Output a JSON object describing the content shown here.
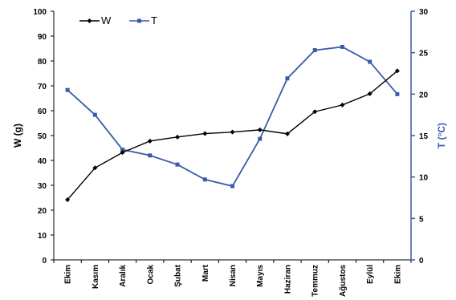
{
  "chart_data": {
    "type": "line",
    "categories": [
      "Ekim",
      "Kasım",
      "Aralık",
      "Ocak",
      "Şubat",
      "Mart",
      "Nisan",
      "Mayıs",
      "Haziran",
      "Temmuz",
      "Ağustos",
      "Eylül",
      "Ekim"
    ],
    "series": [
      {
        "name": "W",
        "axis": "left",
        "color": "#000000",
        "marker": "diamond",
        "values": [
          24.2,
          37.0,
          43.2,
          47.8,
          49.4,
          50.8,
          51.4,
          52.3,
          50.7,
          59.6,
          62.3,
          66.8,
          76.0
        ]
      },
      {
        "name": "T",
        "axis": "right",
        "color": "#3a5ba9",
        "marker": "square",
        "values": [
          20.5,
          17.5,
          13.3,
          12.6,
          11.5,
          9.7,
          8.9,
          14.6,
          21.9,
          25.3,
          25.7,
          23.9,
          20.0
        ]
      }
    ],
    "ylabel_left": "W (g)",
    "ylabel_right": "T (°C)",
    "ylim_left": [
      0,
      100
    ],
    "yticks_left": [
      0,
      10,
      20,
      30,
      40,
      50,
      60,
      70,
      80,
      90,
      100
    ],
    "ylim_right": [
      0,
      30
    ],
    "yticks_right": [
      0,
      5,
      10,
      15,
      20,
      25,
      30
    ],
    "right_axis_color": "#3a5ba9",
    "legend": [
      "W",
      "T"
    ],
    "legend_position": "top-left",
    "grid": false
  }
}
